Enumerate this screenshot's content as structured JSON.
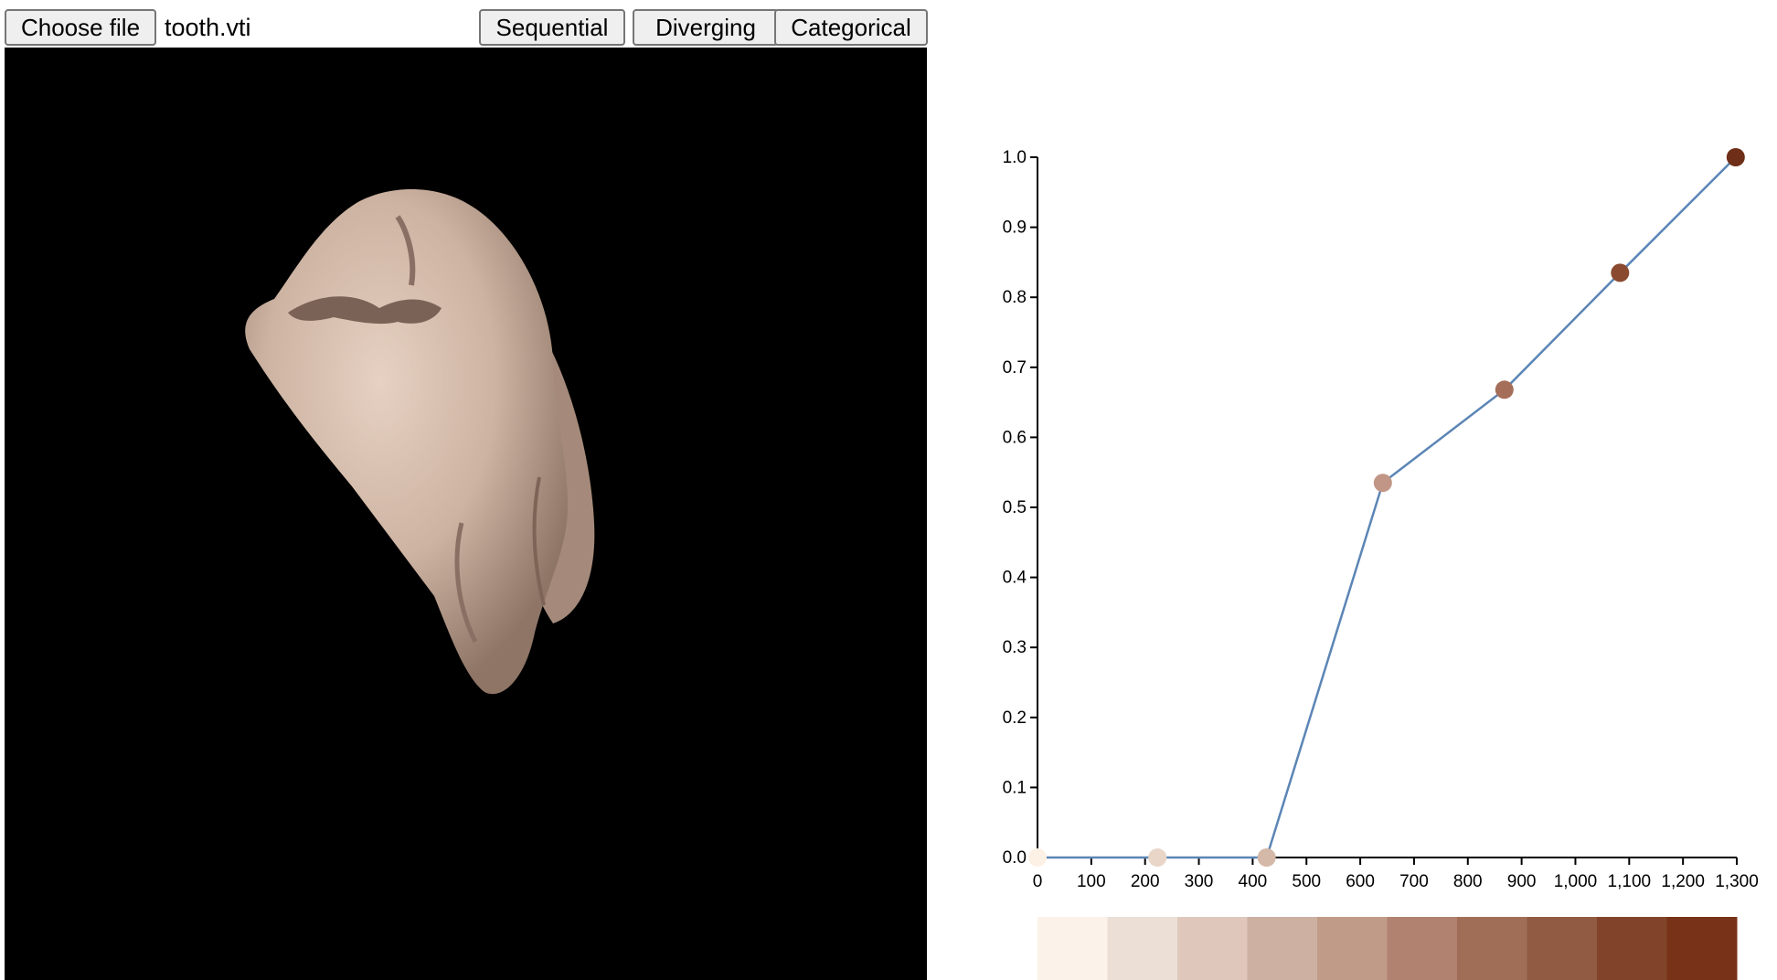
{
  "toolbar": {
    "choose_file_label": "Choose file",
    "file_name": "tooth.vti",
    "sequential_label": "Sequential",
    "diverging_label": "Diverging",
    "categorical_label": "Categorical"
  },
  "viewport": {
    "background": "#000000",
    "object_color": "#d7bfae"
  },
  "chart_data": {
    "type": "line",
    "title": "",
    "xlabel": "",
    "ylabel": "",
    "xlim": [
      0,
      1300
    ],
    "ylim": [
      0,
      1.0
    ],
    "x_ticks": [
      "0",
      "100",
      "200",
      "300",
      "400",
      "500",
      "600",
      "700",
      "800",
      "900",
      "1,000",
      "1,100",
      "1,200",
      "1,300"
    ],
    "y_ticks": [
      "0.0",
      "0.1",
      "0.2",
      "0.3",
      "0.4",
      "0.5",
      "0.6",
      "0.7",
      "0.8",
      "0.9",
      "1.0"
    ],
    "line_color": "#5b85b5",
    "series": [
      {
        "points": [
          {
            "x": 0,
            "y": 0.0,
            "color": "#fdf1e6"
          },
          {
            "x": 223,
            "y": 0.0,
            "color": "#e9d6c9"
          },
          {
            "x": 426,
            "y": 0.0,
            "color": "#d4b8a8"
          },
          {
            "x": 642,
            "y": 0.535,
            "color": "#c19686"
          },
          {
            "x": 868,
            "y": 0.668,
            "color": "#a56e58"
          },
          {
            "x": 1083,
            "y": 0.835,
            "color": "#8a4a30"
          },
          {
            "x": 1298,
            "y": 1.0,
            "color": "#6e2e17"
          }
        ]
      }
    ],
    "colorbar": [
      "#fbf2ea",
      "#ecdfd5",
      "#dfc8bb",
      "#cdb0a1",
      "#c09b88",
      "#b0826f",
      "#a06e56",
      "#915a42",
      "#81442a",
      "#773217"
    ]
  }
}
